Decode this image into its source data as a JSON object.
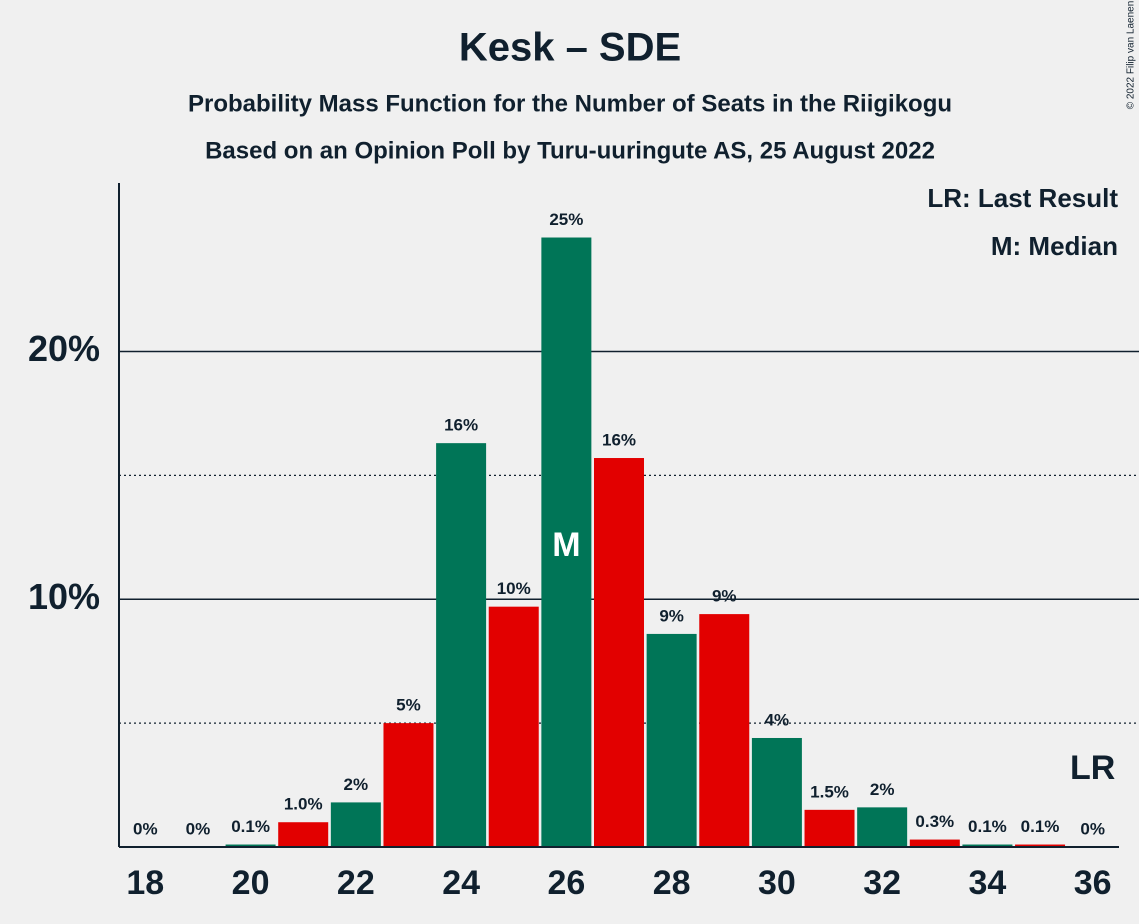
{
  "chart_data": {
    "type": "bar",
    "title": "Kesk – SDE",
    "subtitle": "Probability Mass Function for the Number of Seats in the Riigikogu",
    "subtitle2": "Based on an Opinion Poll by Turu-uuringute AS, 25 August 2022",
    "copyright": "© 2022 Filip van Laenen",
    "legend": [
      "LR: Last Result",
      "M: Median"
    ],
    "x": [
      18,
      19,
      20,
      21,
      22,
      23,
      24,
      25,
      26,
      27,
      28,
      29,
      30,
      31,
      32,
      33,
      34,
      35,
      36
    ],
    "values": [
      0,
      0,
      0.1,
      1.0,
      1.8,
      5.0,
      16.3,
      9.7,
      24.6,
      15.7,
      8.6,
      9.4,
      4.4,
      1.5,
      1.6,
      0.3,
      0.1,
      0.1,
      0
    ],
    "value_labels": [
      "0%",
      "0%",
      "0.1%",
      "1.0%",
      "2%",
      "5%",
      "16%",
      "10%",
      "25%",
      "16%",
      "9%",
      "9%",
      "4%",
      "1.5%",
      "2%",
      "0.3%",
      "0.1%",
      "0.1%",
      "0%"
    ],
    "colors": [
      "#007557",
      "#e20000",
      "#007557",
      "#e20000",
      "#007557",
      "#e20000",
      "#007557",
      "#e20000",
      "#007557",
      "#e20000",
      "#007557",
      "#e20000",
      "#007557",
      "#e20000",
      "#007557",
      "#e20000",
      "#007557",
      "#e20000",
      "#007557"
    ],
    "xlim": [
      17.5,
      36.5
    ],
    "xticks": [
      18,
      20,
      22,
      24,
      26,
      28,
      30,
      32,
      34,
      36
    ],
    "ylim": [
      0,
      26.8
    ],
    "yticks": [
      {
        "value": 10,
        "label": "10%"
      },
      {
        "value": 20,
        "label": "20%"
      }
    ],
    "yminor": [
      5,
      15
    ],
    "median": 26,
    "median_label": "M",
    "last_result": 36,
    "last_result_label": "LR"
  }
}
